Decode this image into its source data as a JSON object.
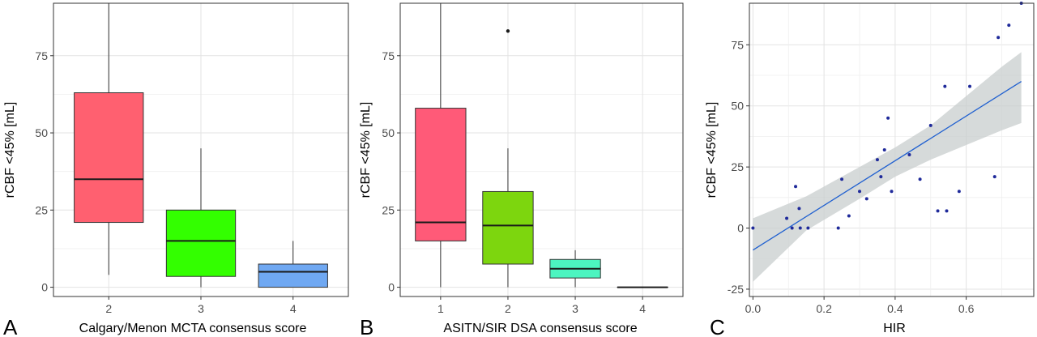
{
  "chart_data": [
    {
      "panel_letter": "A",
      "type": "boxplot",
      "xlabel": "Calgary/Menon MCTA consensus score",
      "ylabel": "rCBF <45% [mL]",
      "ylim": [
        -3,
        92
      ],
      "yticks": [
        0,
        25,
        50,
        75
      ],
      "grid": true,
      "boxes": [
        {
          "category": "2",
          "color": "#FF6070",
          "min": 4,
          "q1": 21,
          "median": 35,
          "q3": 63,
          "max": 92,
          "outliers": []
        },
        {
          "category": "3",
          "color": "#33FF00",
          "min": 0,
          "q1": 3.5,
          "median": 15,
          "q3": 25,
          "max": 45,
          "outliers": []
        },
        {
          "category": "4",
          "color": "#6FA8F2",
          "min": 0,
          "q1": 0,
          "median": 5,
          "q3": 7.5,
          "max": 15,
          "outliers": []
        }
      ]
    },
    {
      "panel_letter": "B",
      "type": "boxplot",
      "xlabel": "ASITN/SIR DSA consensus score",
      "ylabel": "rCBF <45% [mL]",
      "ylim": [
        -3,
        92
      ],
      "yticks": [
        0,
        25,
        50,
        75
      ],
      "grid": true,
      "boxes": [
        {
          "category": "1",
          "color": "#FF5A78",
          "min": 0,
          "q1": 15,
          "median": 21,
          "q3": 58,
          "max": 92,
          "outliers": []
        },
        {
          "category": "2",
          "color": "#7DD60E",
          "min": 0,
          "q1": 7.5,
          "median": 20,
          "q3": 31,
          "max": 45,
          "outliers": [
            83
          ]
        },
        {
          "category": "3",
          "color": "#4CF5C0",
          "min": 0,
          "q1": 3,
          "median": 6,
          "q3": 9,
          "max": 12,
          "outliers": []
        },
        {
          "category": "4",
          "color": "#CC88FF",
          "min": 0,
          "q1": 0,
          "median": 0,
          "q3": 0,
          "max": 0,
          "outliers": []
        }
      ]
    },
    {
      "panel_letter": "C",
      "type": "scatter",
      "xlabel": "HIR",
      "ylabel": "rCBF <45% [mL]",
      "xlim": [
        -0.01,
        0.79
      ],
      "ylim": [
        -28,
        92
      ],
      "xticks": [
        0.0,
        0.2,
        0.4,
        0.6
      ],
      "xtick_labels": [
        "0.0",
        "0.2",
        "0.4",
        "0.6"
      ],
      "yticks": [
        -25,
        0,
        25,
        50,
        75
      ],
      "grid": true,
      "point_color": "#1F2A9A",
      "line_color": "#2060D0",
      "band_color": "#C8CDCE",
      "points": [
        {
          "x": 0.0,
          "y": 0
        },
        {
          "x": 0.095,
          "y": 4
        },
        {
          "x": 0.11,
          "y": 0
        },
        {
          "x": 0.12,
          "y": 17
        },
        {
          "x": 0.13,
          "y": 8
        },
        {
          "x": 0.133,
          "y": 0
        },
        {
          "x": 0.155,
          "y": 0
        },
        {
          "x": 0.24,
          "y": 0
        },
        {
          "x": 0.25,
          "y": 20
        },
        {
          "x": 0.27,
          "y": 5
        },
        {
          "x": 0.3,
          "y": 15
        },
        {
          "x": 0.32,
          "y": 12
        },
        {
          "x": 0.35,
          "y": 28
        },
        {
          "x": 0.36,
          "y": 21
        },
        {
          "x": 0.37,
          "y": 32
        },
        {
          "x": 0.38,
          "y": 45
        },
        {
          "x": 0.39,
          "y": 15
        },
        {
          "x": 0.44,
          "y": 30
        },
        {
          "x": 0.47,
          "y": 20
        },
        {
          "x": 0.5,
          "y": 42
        },
        {
          "x": 0.52,
          "y": 7
        },
        {
          "x": 0.54,
          "y": 58
        },
        {
          "x": 0.545,
          "y": 7
        },
        {
          "x": 0.58,
          "y": 15
        },
        {
          "x": 0.61,
          "y": 58
        },
        {
          "x": 0.68,
          "y": 21
        },
        {
          "x": 0.69,
          "y": 78
        },
        {
          "x": 0.72,
          "y": 83
        },
        {
          "x": 0.755,
          "y": 92
        }
      ],
      "regression": {
        "x": [
          0.0,
          0.755
        ],
        "y": [
          -9,
          60
        ]
      },
      "confidence_band": [
        {
          "x": 0.0,
          "lo": -22,
          "hi": 4
        },
        {
          "x": 0.15,
          "lo": -1,
          "hi": 13
        },
        {
          "x": 0.3,
          "lo": 12,
          "hi": 25
        },
        {
          "x": 0.4,
          "lo": 21,
          "hi": 33
        },
        {
          "x": 0.5,
          "lo": 28,
          "hi": 42
        },
        {
          "x": 0.6,
          "lo": 34,
          "hi": 54
        },
        {
          "x": 0.7,
          "lo": 40,
          "hi": 66
        },
        {
          "x": 0.755,
          "lo": 43,
          "hi": 72
        }
      ]
    }
  ]
}
